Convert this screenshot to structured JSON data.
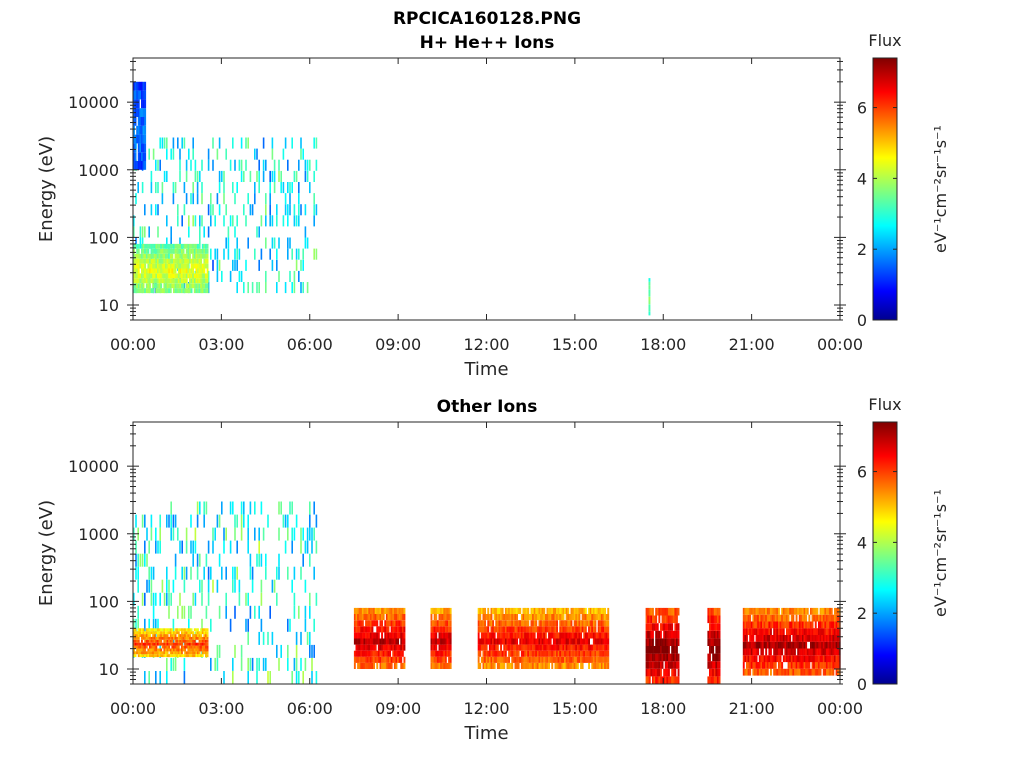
{
  "figure": {
    "title_line1": "RPCICA160128.PNG",
    "title_line2": "H+ He++ Ions"
  },
  "chart_data": [
    {
      "type": "heatmap",
      "title": "H+ He++ Ions",
      "xlabel": "Time",
      "ylabel": "Energy (eV)",
      "y_scale": "log",
      "ylim": [
        6,
        45000
      ],
      "xlim": [
        0,
        24
      ],
      "x_ticks": [
        "00:00",
        "03:00",
        "06:00",
        "09:00",
        "12:00",
        "15:00",
        "18:00",
        "21:00",
        "00:00"
      ],
      "y_ticks": [
        "10",
        "100",
        "1000",
        "10000"
      ],
      "colorbar": {
        "label": "Flux",
        "units": "eV⁻¹cm⁻²sr⁻¹s⁻¹",
        "range": [
          0,
          7.4
        ],
        "ticks": [
          "0",
          "2",
          "4",
          "6"
        ],
        "colormap": "jet"
      },
      "blocks": [
        {
          "t_start": 0.0,
          "t_end": 6.2,
          "e_low": 15,
          "e_high": 3000,
          "flux": 2.8,
          "note": "sparse"
        },
        {
          "t_start": 0.0,
          "t_end": 0.4,
          "e_low": 1000,
          "e_high": 20000,
          "flux": 1.5
        },
        {
          "t_start": 0.0,
          "t_end": 2.5,
          "e_low": 15,
          "e_high": 80,
          "flux": 4.0
        },
        {
          "t_start": 17.5,
          "t_end": 17.55,
          "e_low": 7,
          "e_high": 25,
          "flux": 3.5
        }
      ],
      "grid": false
    },
    {
      "type": "heatmap",
      "title": "Other Ions",
      "xlabel": "Time",
      "ylabel": "Energy (eV)",
      "y_scale": "log",
      "ylim": [
        6,
        45000
      ],
      "xlim": [
        0,
        24
      ],
      "x_ticks": [
        "00:00",
        "03:00",
        "06:00",
        "09:00",
        "12:00",
        "15:00",
        "18:00",
        "21:00",
        "00:00"
      ],
      "y_ticks": [
        "10",
        "100",
        "1000",
        "10000"
      ],
      "colorbar": {
        "label": "Flux",
        "units": "eV⁻¹cm⁻²sr⁻¹s⁻¹",
        "range": [
          0,
          7.4
        ],
        "ticks": [
          "0",
          "2",
          "4",
          "6"
        ],
        "colormap": "jet"
      },
      "blocks": [
        {
          "t_start": 0.0,
          "t_end": 6.2,
          "e_low": 6,
          "e_high": 3000,
          "flux": 3.0,
          "note": "sparse"
        },
        {
          "t_start": 0.0,
          "t_end": 2.5,
          "e_low": 15,
          "e_high": 40,
          "flux": 5.5
        },
        {
          "t_start": 7.5,
          "t_end": 9.2,
          "e_low": 10,
          "e_high": 80,
          "flux": 6.3
        },
        {
          "t_start": 10.1,
          "t_end": 10.8,
          "e_low": 10,
          "e_high": 80,
          "flux": 6.2
        },
        {
          "t_start": 11.7,
          "t_end": 16.1,
          "e_low": 10,
          "e_high": 80,
          "flux": 6.0
        },
        {
          "t_start": 17.4,
          "t_end": 18.5,
          "e_low": 6,
          "e_high": 80,
          "flux": 6.8
        },
        {
          "t_start": 19.5,
          "t_end": 19.9,
          "e_low": 6,
          "e_high": 80,
          "flux": 6.8
        },
        {
          "t_start": 20.7,
          "t_end": 24.0,
          "e_low": 8,
          "e_high": 80,
          "flux": 6.4
        }
      ],
      "grid": false
    }
  ]
}
